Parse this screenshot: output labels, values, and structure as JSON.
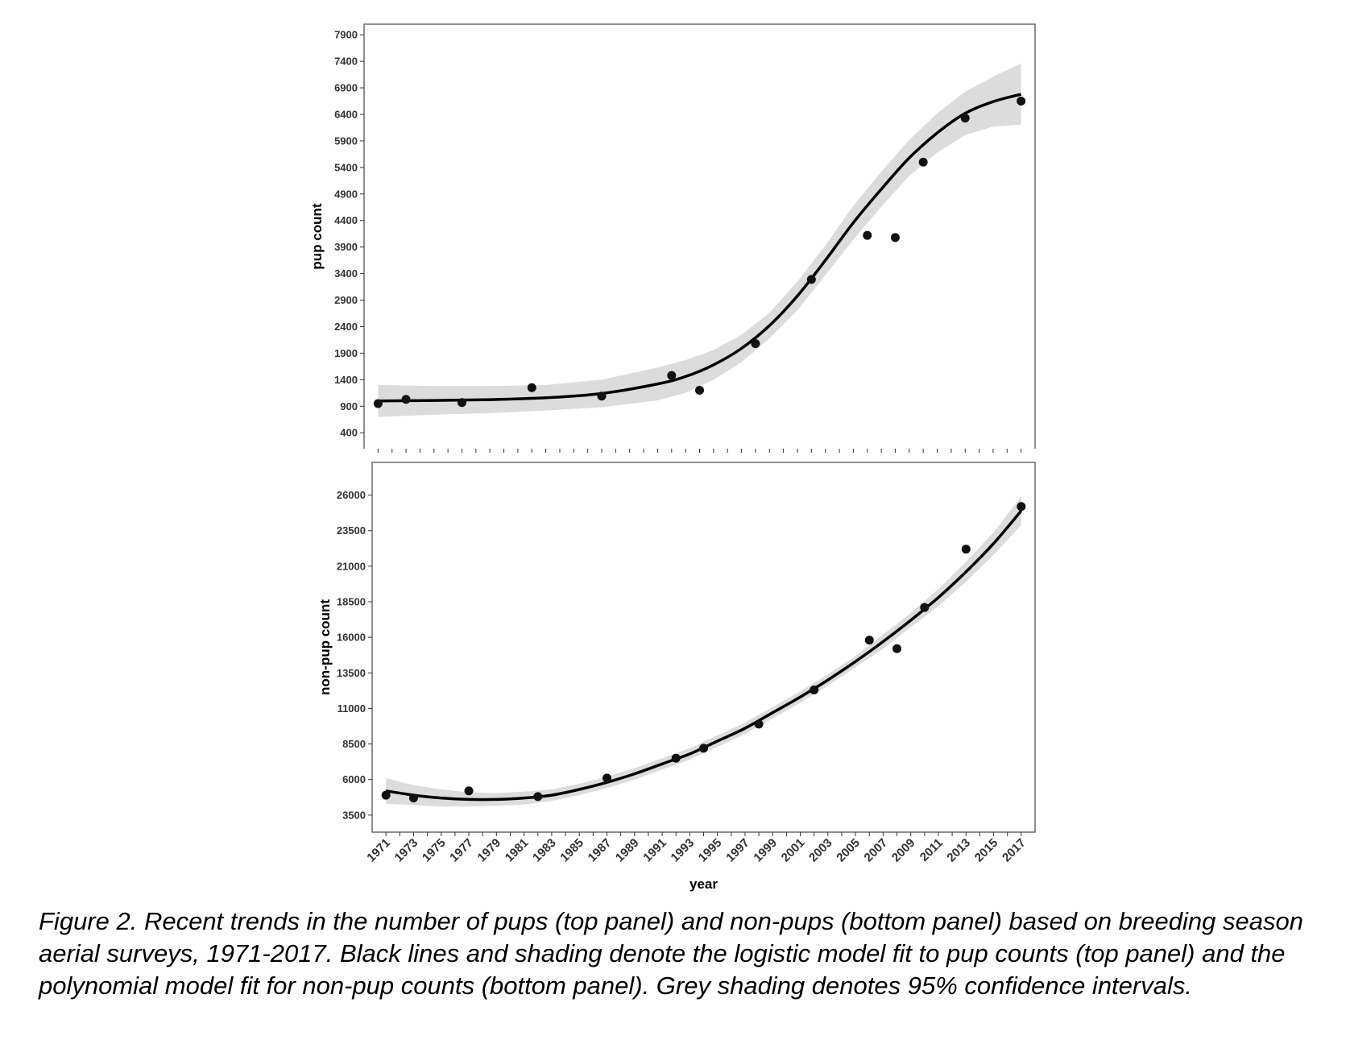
{
  "chart_data": [
    {
      "type": "scatter",
      "panel": "top",
      "xlabel": "",
      "ylabel": "pup count",
      "xlim": [
        1970,
        2018
      ],
      "ylim": [
        100,
        8100
      ],
      "yticks": [
        400,
        900,
        1400,
        1900,
        2400,
        2900,
        3400,
        3900,
        4400,
        4900,
        5400,
        5900,
        6400,
        6900,
        7400,
        7900
      ],
      "xticks": [
        1971,
        1973,
        1975,
        1977,
        1979,
        1981,
        1983,
        1985,
        1987,
        1989,
        1991,
        1993,
        1995,
        1997,
        1999,
        2001,
        2003,
        2005,
        2007,
        2009,
        2011,
        2013,
        2015,
        2017
      ],
      "points": [
        {
          "x": 1971,
          "y": 950
        },
        {
          "x": 1973,
          "y": 1030
        },
        {
          "x": 1977,
          "y": 970
        },
        {
          "x": 1982,
          "y": 1250
        },
        {
          "x": 1987,
          "y": 1090
        },
        {
          "x": 1992,
          "y": 1480
        },
        {
          "x": 1994,
          "y": 1200
        },
        {
          "x": 1998,
          "y": 2080
        },
        {
          "x": 2002,
          "y": 3290
        },
        {
          "x": 2006,
          "y": 4120
        },
        {
          "x": 2008,
          "y": 4080
        },
        {
          "x": 2010,
          "y": 5500
        },
        {
          "x": 2013,
          "y": 6330
        },
        {
          "x": 2017,
          "y": 6650
        }
      ],
      "fit": {
        "x": [
          1971,
          1975,
          1979,
          1983,
          1987,
          1991,
          1993,
          1995,
          1997,
          1999,
          2001,
          2003,
          2005,
          2007,
          2009,
          2011,
          2013,
          2015,
          2017
        ],
        "y": [
          1000,
          1010,
          1025,
          1060,
          1140,
          1320,
          1460,
          1680,
          1990,
          2420,
          2980,
          3650,
          4360,
          4990,
          5580,
          6050,
          6420,
          6640,
          6780
        ],
        "lower": [
          700,
          740,
          770,
          820,
          880,
          1010,
          1150,
          1400,
          1730,
          2180,
          2710,
          3370,
          4040,
          4660,
          5240,
          5680,
          6010,
          6170,
          6210
        ],
        "upper": [
          1300,
          1280,
          1280,
          1300,
          1400,
          1630,
          1770,
          1960,
          2250,
          2660,
          3250,
          3930,
          4680,
          5320,
          5920,
          6420,
          6830,
          7110,
          7360
        ]
      },
      "grid": false
    },
    {
      "type": "scatter",
      "panel": "bottom",
      "xlabel": "year",
      "ylabel": "non-pup count",
      "xlim": [
        1970,
        2018
      ],
      "ylim": [
        2300,
        28300
      ],
      "yticks": [
        3500,
        6000,
        8500,
        11000,
        13500,
        16000,
        18500,
        21000,
        23500,
        26000
      ],
      "xticks": [
        1971,
        1973,
        1975,
        1977,
        1979,
        1981,
        1983,
        1985,
        1987,
        1989,
        1991,
        1993,
        1995,
        1997,
        1999,
        2001,
        2003,
        2005,
        2007,
        2009,
        2011,
        2013,
        2015,
        2017
      ],
      "points": [
        {
          "x": 1971,
          "y": 4900
        },
        {
          "x": 1973,
          "y": 4700
        },
        {
          "x": 1977,
          "y": 5200
        },
        {
          "x": 1982,
          "y": 4800
        },
        {
          "x": 1987,
          "y": 6100
        },
        {
          "x": 1992,
          "y": 7500
        },
        {
          "x": 1994,
          "y": 8200
        },
        {
          "x": 1998,
          "y": 9900
        },
        {
          "x": 2002,
          "y": 12300
        },
        {
          "x": 2006,
          "y": 15800
        },
        {
          "x": 2008,
          "y": 15200
        },
        {
          "x": 2010,
          "y": 18100
        },
        {
          "x": 2013,
          "y": 22200
        },
        {
          "x": 2017,
          "y": 25200
        }
      ],
      "fit": {
        "x": [
          1971,
          1973,
          1975,
          1977,
          1979,
          1981,
          1983,
          1985,
          1987,
          1989,
          1991,
          1993,
          1995,
          1997,
          1999,
          2001,
          2003,
          2005,
          2007,
          2009,
          2011,
          2013,
          2015,
          2017
        ],
        "y": [
          5200,
          4900,
          4700,
          4600,
          4600,
          4700,
          4900,
          5300,
          5800,
          6400,
          7100,
          7800,
          8700,
          9600,
          10700,
          11800,
          13000,
          14300,
          15700,
          17200,
          18800,
          20600,
          22600,
          24900
        ],
        "lower": [
          4300,
          4200,
          4100,
          4100,
          4150,
          4250,
          4500,
          4900,
          5400,
          6000,
          6700,
          7400,
          8300,
          9200,
          10300,
          11400,
          12600,
          13900,
          15200,
          16700,
          18200,
          19900,
          21800,
          23900
        ],
        "upper": [
          6100,
          5600,
          5300,
          5100,
          5050,
          5150,
          5300,
          5700,
          6200,
          6800,
          7500,
          8200,
          9100,
          10000,
          11100,
          12200,
          13400,
          14700,
          16200,
          17700,
          19400,
          21300,
          23400,
          25900
        ]
      },
      "grid": false
    }
  ],
  "caption": "Figure 2. Recent trends in the number of pups (top panel) and non-pups (bottom panel) based on breeding season aerial surveys, 1971-2017. Black lines and shading denote the logistic model fit to pup counts (top panel) and the polynomial model fit for non-pup counts (bottom panel). Grey shading denotes 95% confidence intervals.",
  "colors": {
    "ribbon": "#dcdcdc",
    "line": "#000000",
    "point": "#111111",
    "panel_border": "#555555"
  }
}
